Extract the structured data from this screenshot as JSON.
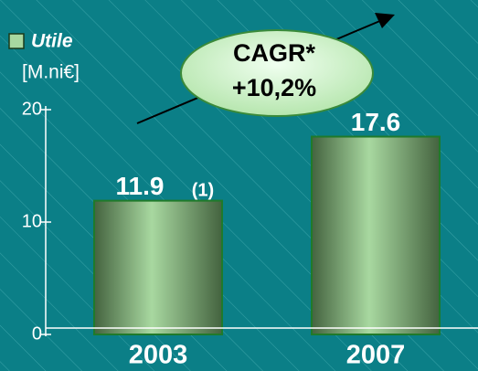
{
  "chart_data": {
    "type": "bar",
    "series": [
      {
        "name": "Utile",
        "color": "#a8d8a0",
        "values": [
          11.9,
          17.6
        ]
      }
    ],
    "categories": [
      "2003",
      "2007"
    ],
    "y_label": "[M.ni€]",
    "ylim": [
      0,
      20
    ],
    "yticks": [
      0,
      10,
      20
    ],
    "annotations": [
      "(1)",
      "CAGR*",
      "+10,2%"
    ]
  }
}
